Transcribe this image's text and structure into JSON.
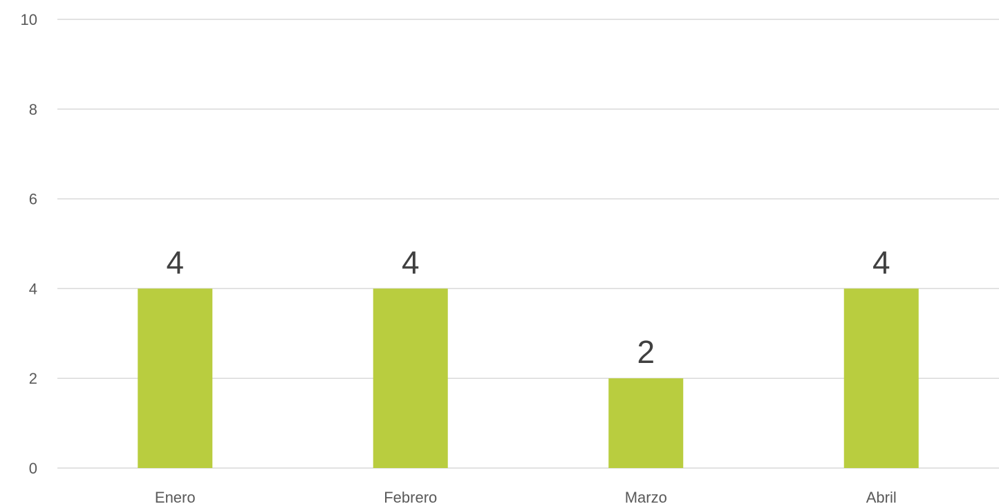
{
  "chart_data": {
    "type": "bar",
    "categories": [
      "Enero",
      "Febrero",
      "Marzo",
      "Abril"
    ],
    "values": [
      4,
      4,
      2,
      4
    ],
    "data_labels": [
      "4",
      "4",
      "2",
      "4"
    ],
    "title": "",
    "xlabel": "",
    "ylabel": "",
    "ylim": [
      0,
      10
    ],
    "yticks": [
      0,
      2,
      4,
      6,
      8,
      10
    ],
    "grid": true,
    "legend": "none",
    "bar_color": "#b9cd3f",
    "grid_color": "#d9d9d9",
    "text_color": "#595959",
    "label_color": "#404040"
  }
}
